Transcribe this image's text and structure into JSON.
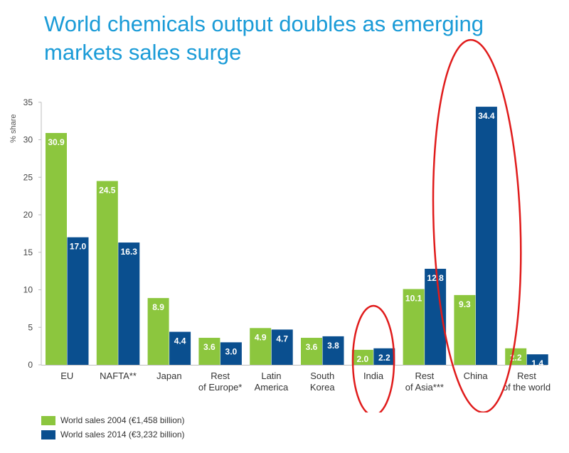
{
  "chart_data": {
    "type": "bar",
    "title": "World chemicals output doubles as emerging markets sales surge",
    "xlabel": "",
    "ylabel": "% share",
    "ylim": [
      0,
      35
    ],
    "yticks": [
      0,
      5,
      10,
      15,
      20,
      25,
      30,
      35
    ],
    "categories": [
      [
        "EU"
      ],
      [
        "NAFTA**"
      ],
      [
        "Japan"
      ],
      [
        "Rest",
        "of Europe*"
      ],
      [
        "Latin",
        "America"
      ],
      [
        "South",
        "Korea"
      ],
      [
        "India"
      ],
      [
        "Rest",
        "of Asia***"
      ],
      [
        "China"
      ],
      [
        "Rest",
        "of the world"
      ]
    ],
    "series": [
      {
        "name": "World sales 2004 (€1,458 billion)",
        "color": "#8cc63e",
        "values": [
          30.9,
          24.5,
          8.9,
          3.6,
          4.9,
          3.6,
          2.0,
          10.1,
          9.3,
          2.2
        ],
        "labels": [
          "30.9",
          "24.5",
          "8.9",
          "3.6",
          "4.9",
          "3.6",
          "2.0",
          "10.1",
          "9.3",
          "2.2"
        ]
      },
      {
        "name": "World sales 2014 (€3,232 billion)",
        "color": "#0a4f8f",
        "values": [
          17.0,
          16.3,
          4.4,
          3.0,
          4.7,
          3.8,
          2.2,
          12.8,
          34.4,
          1.4
        ],
        "labels": [
          "17.0",
          "16.3",
          "4.4",
          "3.0",
          "4.7",
          "3.8",
          "2.2",
          "12.8",
          "34.4",
          "1.4"
        ]
      }
    ],
    "grid": false,
    "legend_position": "bottom-left",
    "annotations": {
      "highlight_color": "#e01b1b",
      "ellipses_around": [
        "India",
        "China"
      ]
    }
  }
}
